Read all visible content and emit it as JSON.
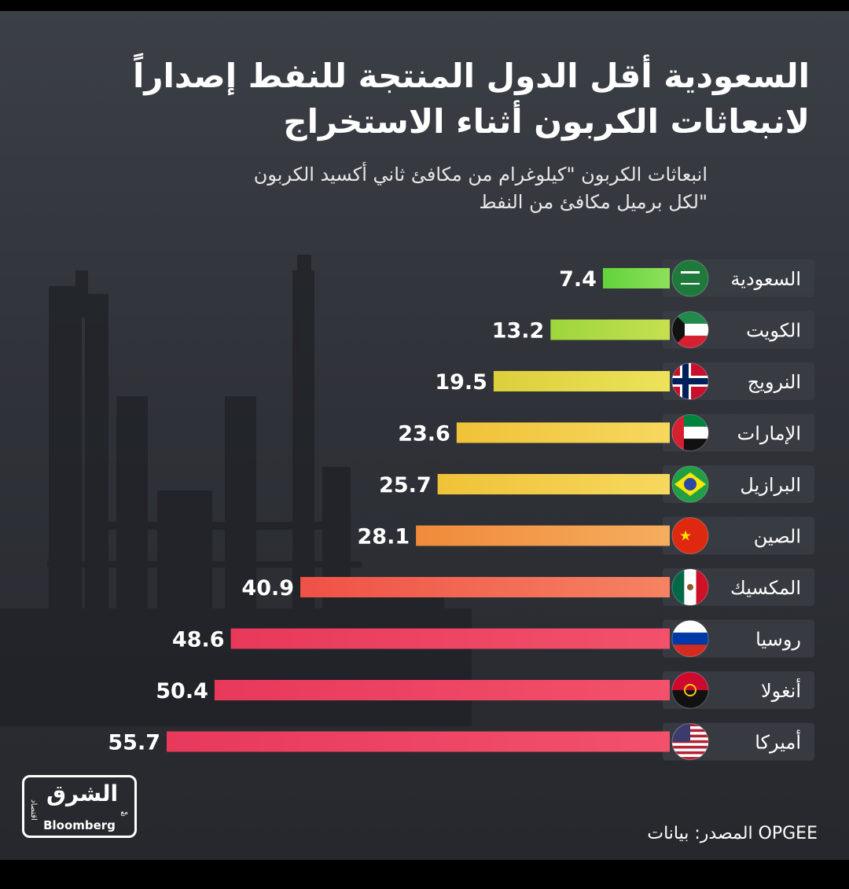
{
  "title_lines": [
    "السعودية أقل الدول المنتجة للنفط إصداراً",
    "لانبعاثات الكربون أثناء الاستخراج"
  ],
  "subtitle_lines": [
    "انبعاثات الكربون \"كيلوغرام من مكافئ ثاني أكسيد الكربون",
    "لكل برميل مكافئ من النفط\""
  ],
  "chart_data": {
    "type": "bar",
    "orientation": "horizontal",
    "categories": [
      "السعودية",
      "الكويت",
      "النرويج",
      "الإمارات",
      "البرازيل",
      "الصين",
      "المكسيك",
      "روسيا",
      "أنغولا",
      "أميركا"
    ],
    "values": [
      7.4,
      13.2,
      19.5,
      23.6,
      25.7,
      28.1,
      40.9,
      48.6,
      50.4,
      55.7
    ],
    "value_labels": [
      "7.4",
      "13.2",
      "19.5",
      "23.6",
      "25.7",
      "28.1",
      "40.9",
      "48.6",
      "50.4",
      "55.7"
    ],
    "flags": [
      "saudi-arabia-flag-icon",
      "kuwait-flag-icon",
      "norway-flag-icon",
      "uae-flag-icon",
      "brazil-flag-icon",
      "china-flag-icon",
      "mexico-flag-icon",
      "russia-flag-icon",
      "angola-flag-icon",
      "usa-flag-icon"
    ],
    "bar_colors": [
      [
        "#62d33a",
        "#8ee05a"
      ],
      [
        "#9dd63c",
        "#c6e04e"
      ],
      [
        "#dccf3c",
        "#ede25a"
      ],
      [
        "#f0c238",
        "#f6d85e"
      ],
      [
        "#f0c238",
        "#f6d85e"
      ],
      [
        "#f08a3a",
        "#f5ad5e"
      ],
      [
        "#ef5147",
        "#f58362"
      ],
      [
        "#e8395b",
        "#f2516b"
      ],
      [
        "#e8395b",
        "#f2516b"
      ],
      [
        "#e8395b",
        "#f2516b"
      ]
    ],
    "xlim": [
      0,
      55.7
    ],
    "grid": false,
    "legend": "none"
  },
  "logo": {
    "arabic": "الشرق",
    "sub": "اقتصاد",
    "with": "مع",
    "bloomberg": "Bloomberg"
  },
  "source_text": "المصدر: بيانات OPGEE",
  "colors": {
    "background": "#2f3238",
    "row_pill": "#3a3d44",
    "text": "#ffffff"
  }
}
